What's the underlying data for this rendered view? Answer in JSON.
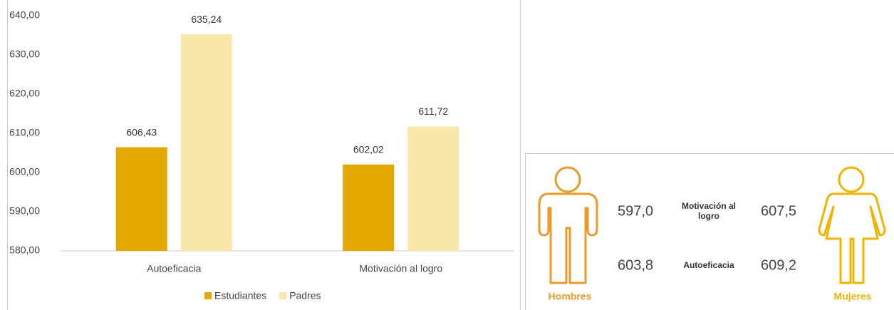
{
  "chart_data": {
    "type": "bar",
    "categories": [
      "Autoeficacia",
      "Motivación al logro"
    ],
    "series": [
      {
        "name": "Estudiantes",
        "color": "#e3a900",
        "values": [
          606.43,
          602.02
        ],
        "value_labels": [
          "606,43",
          "602,02"
        ]
      },
      {
        "name": "Padres",
        "color": "#f8e7a8",
        "values": [
          635.24,
          611.72
        ],
        "value_labels": [
          "635,24",
          "611,72"
        ]
      }
    ],
    "ylim": [
      580,
      640
    ],
    "yticks": [
      {
        "value": 580,
        "label": "580,00"
      },
      {
        "value": 590,
        "label": "590,00"
      },
      {
        "value": 600,
        "label": "600,00"
      },
      {
        "value": 610,
        "label": "610,00"
      },
      {
        "value": 620,
        "label": "620,00"
      },
      {
        "value": 630,
        "label": "630,00"
      },
      {
        "value": 640,
        "label": "640,00"
      }
    ],
    "grid": false,
    "legend": "bottom"
  },
  "infographic": {
    "metrics": [
      "Motivación al logro",
      "Autoeficacia"
    ],
    "groups": [
      {
        "label": "Hombres",
        "values": [
          "597,0",
          "603,8"
        ]
      },
      {
        "label": "Mujeres",
        "values": [
          "607,5",
          "609,2"
        ]
      }
    ]
  }
}
